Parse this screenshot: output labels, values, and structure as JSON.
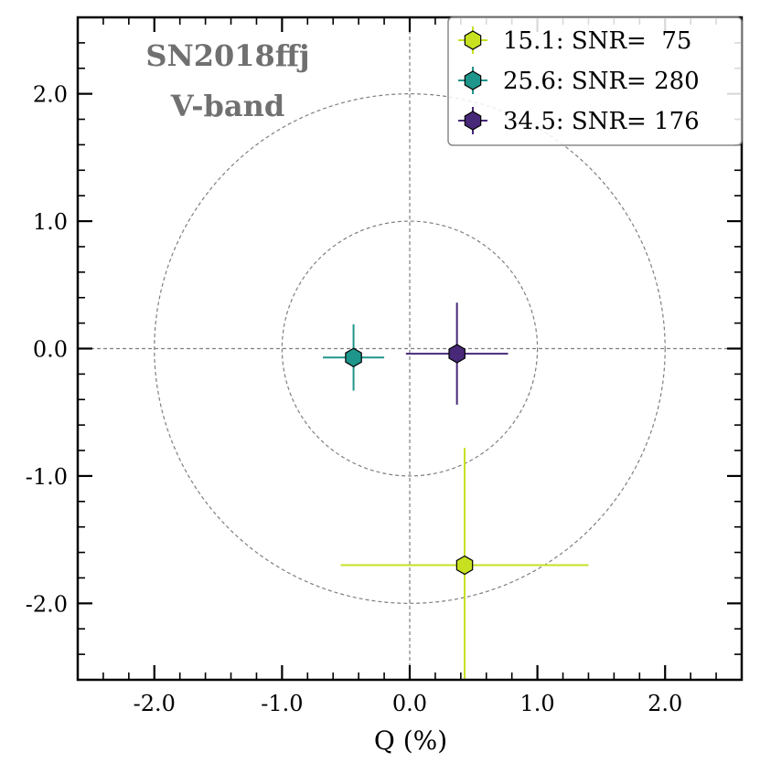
{
  "chart_data": {
    "type": "scatter",
    "title": "",
    "xlabel": "Q (%)",
    "ylabel": "",
    "xlim": [
      -2.6,
      2.6
    ],
    "ylim": [
      -2.6,
      2.6
    ],
    "x_ticks": [
      -2.0,
      -1.0,
      0.0,
      1.0,
      2.0
    ],
    "y_ticks": [
      -2.0,
      -1.0,
      0.0,
      1.0,
      2.0
    ],
    "x_tick_labels": [
      "-2.0",
      "-1.0",
      "0.0",
      "1.0",
      "2.0"
    ],
    "y_tick_labels": [
      "-2.0",
      "-1.0",
      "0.0",
      "1.0",
      "2.0"
    ],
    "reference_circles": [
      1.0,
      2.0
    ],
    "reference_lines": {
      "x": 0.0,
      "y": 0.0
    },
    "annotations": [
      "SN2018ffj",
      "V-band"
    ],
    "annotation_color": "#707070",
    "legend_position": "top-right",
    "series": [
      {
        "name": "15.1: SNR=  75",
        "color": "#c7e020",
        "q": 0.43,
        "u": -1.7,
        "q_err": 0.97,
        "u_err": 0.92
      },
      {
        "name": "25.6: SNR= 280",
        "color": "#1f968b",
        "q": -0.44,
        "u": -0.07,
        "q_err": 0.24,
        "u_err": 0.26
      },
      {
        "name": "34.5: SNR= 176",
        "color": "#482878",
        "q": 0.37,
        "u": -0.04,
        "q_err": 0.4,
        "u_err": 0.4
      }
    ]
  }
}
